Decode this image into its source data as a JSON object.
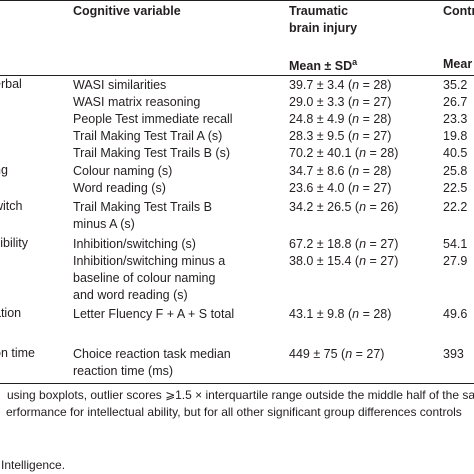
{
  "header": {
    "col_variable": "Cognitive variable",
    "col_tbi_line1": "Traumatic",
    "col_tbi_line2": "brain injury",
    "col_ctl": "Contr",
    "tbi_stat": "Mean ± SD",
    "tbi_stat_sup": "a",
    "ctl_stat": "Mear"
  },
  "rows": [
    {
      "area": "erbal",
      "variable": "WASI similarities",
      "tbi": "39.7 ± 3.4 (",
      "tbi_n": "n = 28)",
      "ctl": "35.2"
    },
    {
      "area": "",
      "variable": "WASI matrix reasoning",
      "tbi": "29.0 ± 3.3 (",
      "tbi_n": "n = 27)",
      "ctl": "26.7"
    },
    {
      "area": "",
      "variable": "People Test immediate recall",
      "tbi": "24.8 ± 4.9 (",
      "tbi_n": "n = 28)",
      "ctl": "23.3"
    },
    {
      "area": "",
      "variable": "Trail Making Test Trail A (s)",
      "tbi": "28.3 ± 9.5 (",
      "tbi_n": "n = 27)",
      "ctl": "19.8"
    },
    {
      "area": "",
      "variable": "Trail Making Test Trails B (s)",
      "tbi": "70.2 ± 40.1 (",
      "tbi_n": "n = 28)",
      "ctl": "40.5"
    },
    {
      "area": "ng",
      "variable": "Colour naming (s)",
      "tbi": "34.7 ± 8.6 (",
      "tbi_n": "n = 28)",
      "ctl": "25.8"
    },
    {
      "area": "",
      "variable": "Word reading (s)",
      "tbi": "23.6 ± 4.0 (",
      "tbi_n": "n = 27)",
      "ctl": "22.5"
    },
    {
      "area": "witch",
      "variable": "Trail Making Test Trails B",
      "variable2": "minus A (s)",
      "tbi": "34.2 ± 26.5 (",
      "tbi_n": "n = 26)",
      "ctl": "22.2"
    },
    {
      "area": "xibility",
      "variable": "Inhibition/switching (s)",
      "tbi": "67.2 ± 18.8 (",
      "tbi_n": "n = 27)",
      "ctl": "54.1"
    },
    {
      "area": "",
      "variable": "Inhibition/switching minus a",
      "variable2": "baseline of colour naming",
      "variable3": "and word reading (s)",
      "tbi": "38.0 ± 15.4 (",
      "tbi_n": "n = 27)",
      "ctl": "27.9"
    },
    {
      "area": "ation",
      "variable": "Letter Fluency F + A + S total",
      "tbi": "43.1 ± 9.8 (",
      "tbi_n": "n = 28)",
      "ctl": "49.6"
    },
    {
      "area": "on time",
      "variable": "Choice reaction task median",
      "variable2": "reaction time (ms)",
      "tbi": "449 ± 75 (",
      "tbi_n": "n = 27)",
      "ctl": "393"
    }
  ],
  "footnotes": {
    "line1": "using boxplots, outlier scores ⩾1.5 × interquartile range outside the middle half of the sa",
    "line2": "erformance for intellectual ability, but for all other significant group differences controls",
    "line3": "Intelligence."
  }
}
